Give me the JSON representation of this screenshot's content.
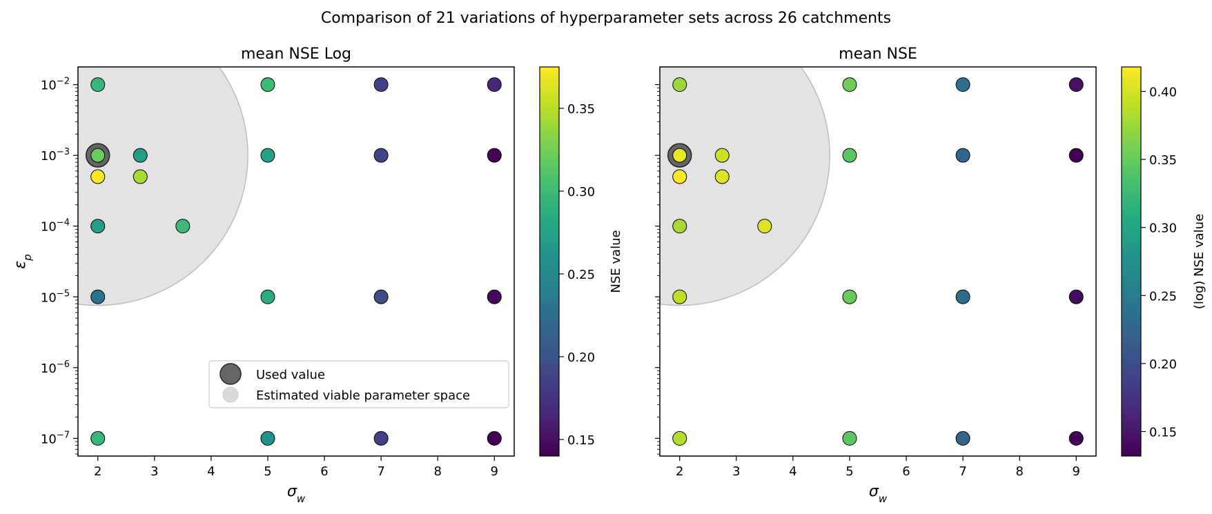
{
  "suptitle": "Comparison of 21 variations of hyperparameter sets across 26 catchments",
  "colors": {
    "viridis": [
      "#440154",
      "#482475",
      "#414487",
      "#355f8d",
      "#2a788e",
      "#21918c",
      "#22a884",
      "#44bf70",
      "#7ad151",
      "#bddf26",
      "#fde725"
    ],
    "used_marker": "#555555",
    "viable_region": "#d9d9d9"
  },
  "chart_data": [
    {
      "type": "scatter",
      "title": "mean NSE Log",
      "xlabel": "σ_w",
      "ylabel": "ε_p",
      "xlim": [
        1.65,
        9.35
      ],
      "ylim_log10": [
        -7.25,
        -1.75
      ],
      "x_ticks": [
        2,
        3,
        4,
        5,
        6,
        7,
        8,
        9
      ],
      "y_tick_exponents": [
        -7,
        -6,
        -5,
        -4,
        -3,
        -2
      ],
      "colorbar": {
        "label": "NSE value",
        "range": [
          0.14,
          0.375
        ],
        "ticks": [
          0.15,
          0.2,
          0.25,
          0.3,
          0.35
        ]
      },
      "used_value": {
        "x": 2,
        "y": 0.001
      },
      "viable_region": {
        "center_x": 2,
        "center_log10_y": -3,
        "shape": "circle"
      },
      "legend": {
        "position": "lower-right",
        "entries": [
          "Used value",
          "Estimated viable parameter space"
        ]
      },
      "points": [
        {
          "x": 2,
          "y": 0.01,
          "value": 0.295
        },
        {
          "x": 2,
          "y": 0.001,
          "value": 0.32
        },
        {
          "x": 2,
          "y": 0.0005,
          "value": 0.375
        },
        {
          "x": 2,
          "y": 0.0001,
          "value": 0.27
        },
        {
          "x": 2,
          "y": 1e-05,
          "value": 0.23
        },
        {
          "x": 2,
          "y": 1e-07,
          "value": 0.295
        },
        {
          "x": 2.75,
          "y": 0.001,
          "value": 0.27
        },
        {
          "x": 2.75,
          "y": 0.0005,
          "value": 0.345
        },
        {
          "x": 3.5,
          "y": 0.0001,
          "value": 0.3
        },
        {
          "x": 5,
          "y": 0.01,
          "value": 0.3
        },
        {
          "x": 5,
          "y": 0.001,
          "value": 0.275
        },
        {
          "x": 5,
          "y": 1e-05,
          "value": 0.285
        },
        {
          "x": 5,
          "y": 1e-07,
          "value": 0.26
        },
        {
          "x": 7,
          "y": 0.01,
          "value": 0.185
        },
        {
          "x": 7,
          "y": 0.001,
          "value": 0.19
        },
        {
          "x": 7,
          "y": 1e-05,
          "value": 0.195
        },
        {
          "x": 7,
          "y": 1e-07,
          "value": 0.185
        },
        {
          "x": 9,
          "y": 0.01,
          "value": 0.165
        },
        {
          "x": 9,
          "y": 0.001,
          "value": 0.14
        },
        {
          "x": 9,
          "y": 1e-05,
          "value": 0.145
        },
        {
          "x": 9,
          "y": 1e-07,
          "value": 0.14
        }
      ]
    },
    {
      "type": "scatter",
      "title": "mean NSE",
      "xlabel": "σ_w",
      "ylabel": "",
      "xlim": [
        1.65,
        9.35
      ],
      "ylim_log10": [
        -7.25,
        -1.75
      ],
      "x_ticks": [
        2,
        3,
        4,
        5,
        6,
        7,
        8,
        9
      ],
      "y_tick_exponents": [
        -7,
        -6,
        -5,
        -4,
        -3,
        -2
      ],
      "colorbar": {
        "label": "(log) NSE value",
        "range": [
          0.132,
          0.418
        ],
        "ticks": [
          0.15,
          0.2,
          0.25,
          0.3,
          0.35,
          0.4
        ]
      },
      "used_value": {
        "x": 2,
        "y": 0.001
      },
      "viable_region": {
        "center_x": 2,
        "center_log10_y": -3,
        "shape": "circle"
      },
      "points": [
        {
          "x": 2,
          "y": 0.01,
          "value": 0.375
        },
        {
          "x": 2,
          "y": 0.001,
          "value": 0.41
        },
        {
          "x": 2,
          "y": 0.0005,
          "value": 0.418
        },
        {
          "x": 2,
          "y": 0.0001,
          "value": 0.38
        },
        {
          "x": 2,
          "y": 1e-05,
          "value": 0.39
        },
        {
          "x": 2,
          "y": 1e-07,
          "value": 0.385
        },
        {
          "x": 2.75,
          "y": 0.001,
          "value": 0.395
        },
        {
          "x": 2.75,
          "y": 0.0005,
          "value": 0.405
        },
        {
          "x": 3.5,
          "y": 0.0001,
          "value": 0.405
        },
        {
          "x": 5,
          "y": 0.01,
          "value": 0.355
        },
        {
          "x": 5,
          "y": 0.001,
          "value": 0.345
        },
        {
          "x": 5,
          "y": 1e-05,
          "value": 0.35
        },
        {
          "x": 5,
          "y": 1e-07,
          "value": 0.345
        },
        {
          "x": 7,
          "y": 0.01,
          "value": 0.235
        },
        {
          "x": 7,
          "y": 0.001,
          "value": 0.225
        },
        {
          "x": 7,
          "y": 1e-05,
          "value": 0.23
        },
        {
          "x": 7,
          "y": 1e-07,
          "value": 0.225
        },
        {
          "x": 9,
          "y": 0.01,
          "value": 0.145
        },
        {
          "x": 9,
          "y": 0.001,
          "value": 0.132
        },
        {
          "x": 9,
          "y": 1e-05,
          "value": 0.14
        },
        {
          "x": 9,
          "y": 1e-07,
          "value": 0.135
        }
      ]
    }
  ]
}
